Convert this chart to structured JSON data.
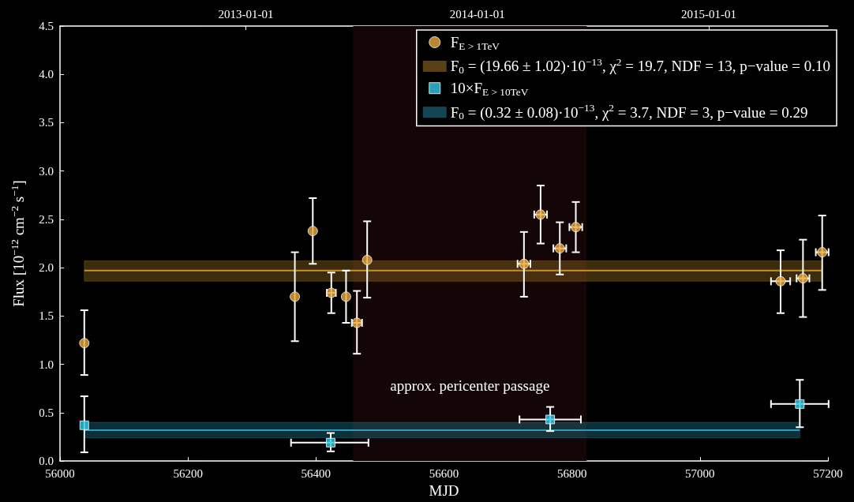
{
  "chart_data": {
    "type": "scatter",
    "xlabel": "MJD",
    "ylabel": "Flux [10$^{−12}$ cm$^{−2}$ s$^{−1}$]",
    "xlim": [
      56000,
      57200
    ],
    "xticks": [
      56000,
      56200,
      56400,
      56600,
      56800,
      57000,
      57200
    ],
    "x2lim": [
      "2012-03-14",
      "2015-07-08"
    ],
    "x2ticks": [
      "2013-01-01",
      "2014-01-01",
      "2015-01-01"
    ],
    "ylim": [
      0,
      4.5
    ],
    "yticks": [
      {
        "value": 0,
        "label": "0.0"
      },
      0.5,
      {
        "value": 1,
        "label": "1.0"
      },
      1.5,
      {
        "value": 2,
        "label": "2.0"
      },
      2.5,
      {
        "value": 3,
        "label": "3.0"
      },
      3.5,
      {
        "value": 4,
        "label": "4.0"
      },
      4.5
    ],
    "grid": false,
    "legend": "top right",
    "bands": [
      {
        "axis": "x",
        "from": 56458,
        "to": 56823,
        "label": "approx. pericenter passage",
        "color": "#140606"
      }
    ],
    "series": [
      {
        "name": "F$_{E > 1TeV}$",
        "marker": "circle",
        "color": "#e8a83a",
        "x": [
          56038,
          56367,
          56395,
          56424,
          56447,
          56464,
          56480,
          56725,
          56751,
          56781,
          56806,
          57126,
          57161,
          57191
        ],
        "values": [
          1.22,
          1.7,
          2.38,
          1.74,
          1.7,
          1.43,
          2.08,
          2.04,
          2.55,
          2.2,
          2.42,
          1.86,
          1.89,
          2.16
        ],
        "errors": [
          [
            0.89,
            1.56
          ],
          [
            1.24,
            2.16
          ],
          [
            2.04,
            2.72
          ],
          [
            1.53,
            1.95
          ],
          [
            1.43,
            1.97
          ],
          [
            1.11,
            1.76
          ],
          [
            1.69,
            2.48
          ],
          [
            1.7,
            2.37
          ],
          [
            2.25,
            2.85
          ],
          [
            1.93,
            2.47
          ],
          [
            2.16,
            2.68
          ],
          [
            1.53,
            2.18
          ],
          [
            1.49,
            2.29
          ],
          [
            1.77,
            2.54
          ]
        ],
        "xerrors": [
          null,
          null,
          null,
          7,
          null,
          8,
          null,
          10,
          10,
          10,
          10,
          15,
          10,
          10
        ]
      },
      {
        "name": "F$_{0}$ = (19.66 ± 1.02)·10$^{−13}$, χ$^{2}$ = 19.7, NDF = 13, p−value = 0.10",
        "type": "line",
        "color": "#c8902a",
        "x": [
          56038,
          57191
        ],
        "values": [
          1.97,
          1.97
        ],
        "lower": [
          1.86,
          1.86
        ],
        "upper": [
          2.07,
          2.07
        ]
      },
      {
        "name": "10×F$_{E > 10TeV}$",
        "marker": "square",
        "color": "#2ecbe6",
        "x": [
          56038,
          56423,
          56766,
          57156
        ],
        "values": [
          0.37,
          0.19,
          0.43,
          0.59
        ],
        "errors": [
          [
            0.09,
            0.67
          ],
          [
            0.1,
            0.29
          ],
          [
            0.31,
            0.56
          ],
          [
            0.35,
            0.84
          ]
        ],
        "xerrors": [
          null,
          [
            56361,
            56482
          ],
          [
            56718,
            56814
          ],
          [
            57111,
            57201
          ]
        ]
      },
      {
        "name": "F$_{0}$ = (0.32 ± 0.08)·10$^{−13}$, χ$^{2}$ = 3.7, NDF = 3, p−value = 0.29",
        "type": "line",
        "color": "#2a9cb5",
        "x": [
          56038,
          57156
        ],
        "values": [
          0.32,
          0.32
        ],
        "lower": [
          0.24,
          0.24
        ],
        "upper": [
          0.4,
          0.4
        ]
      }
    ]
  }
}
